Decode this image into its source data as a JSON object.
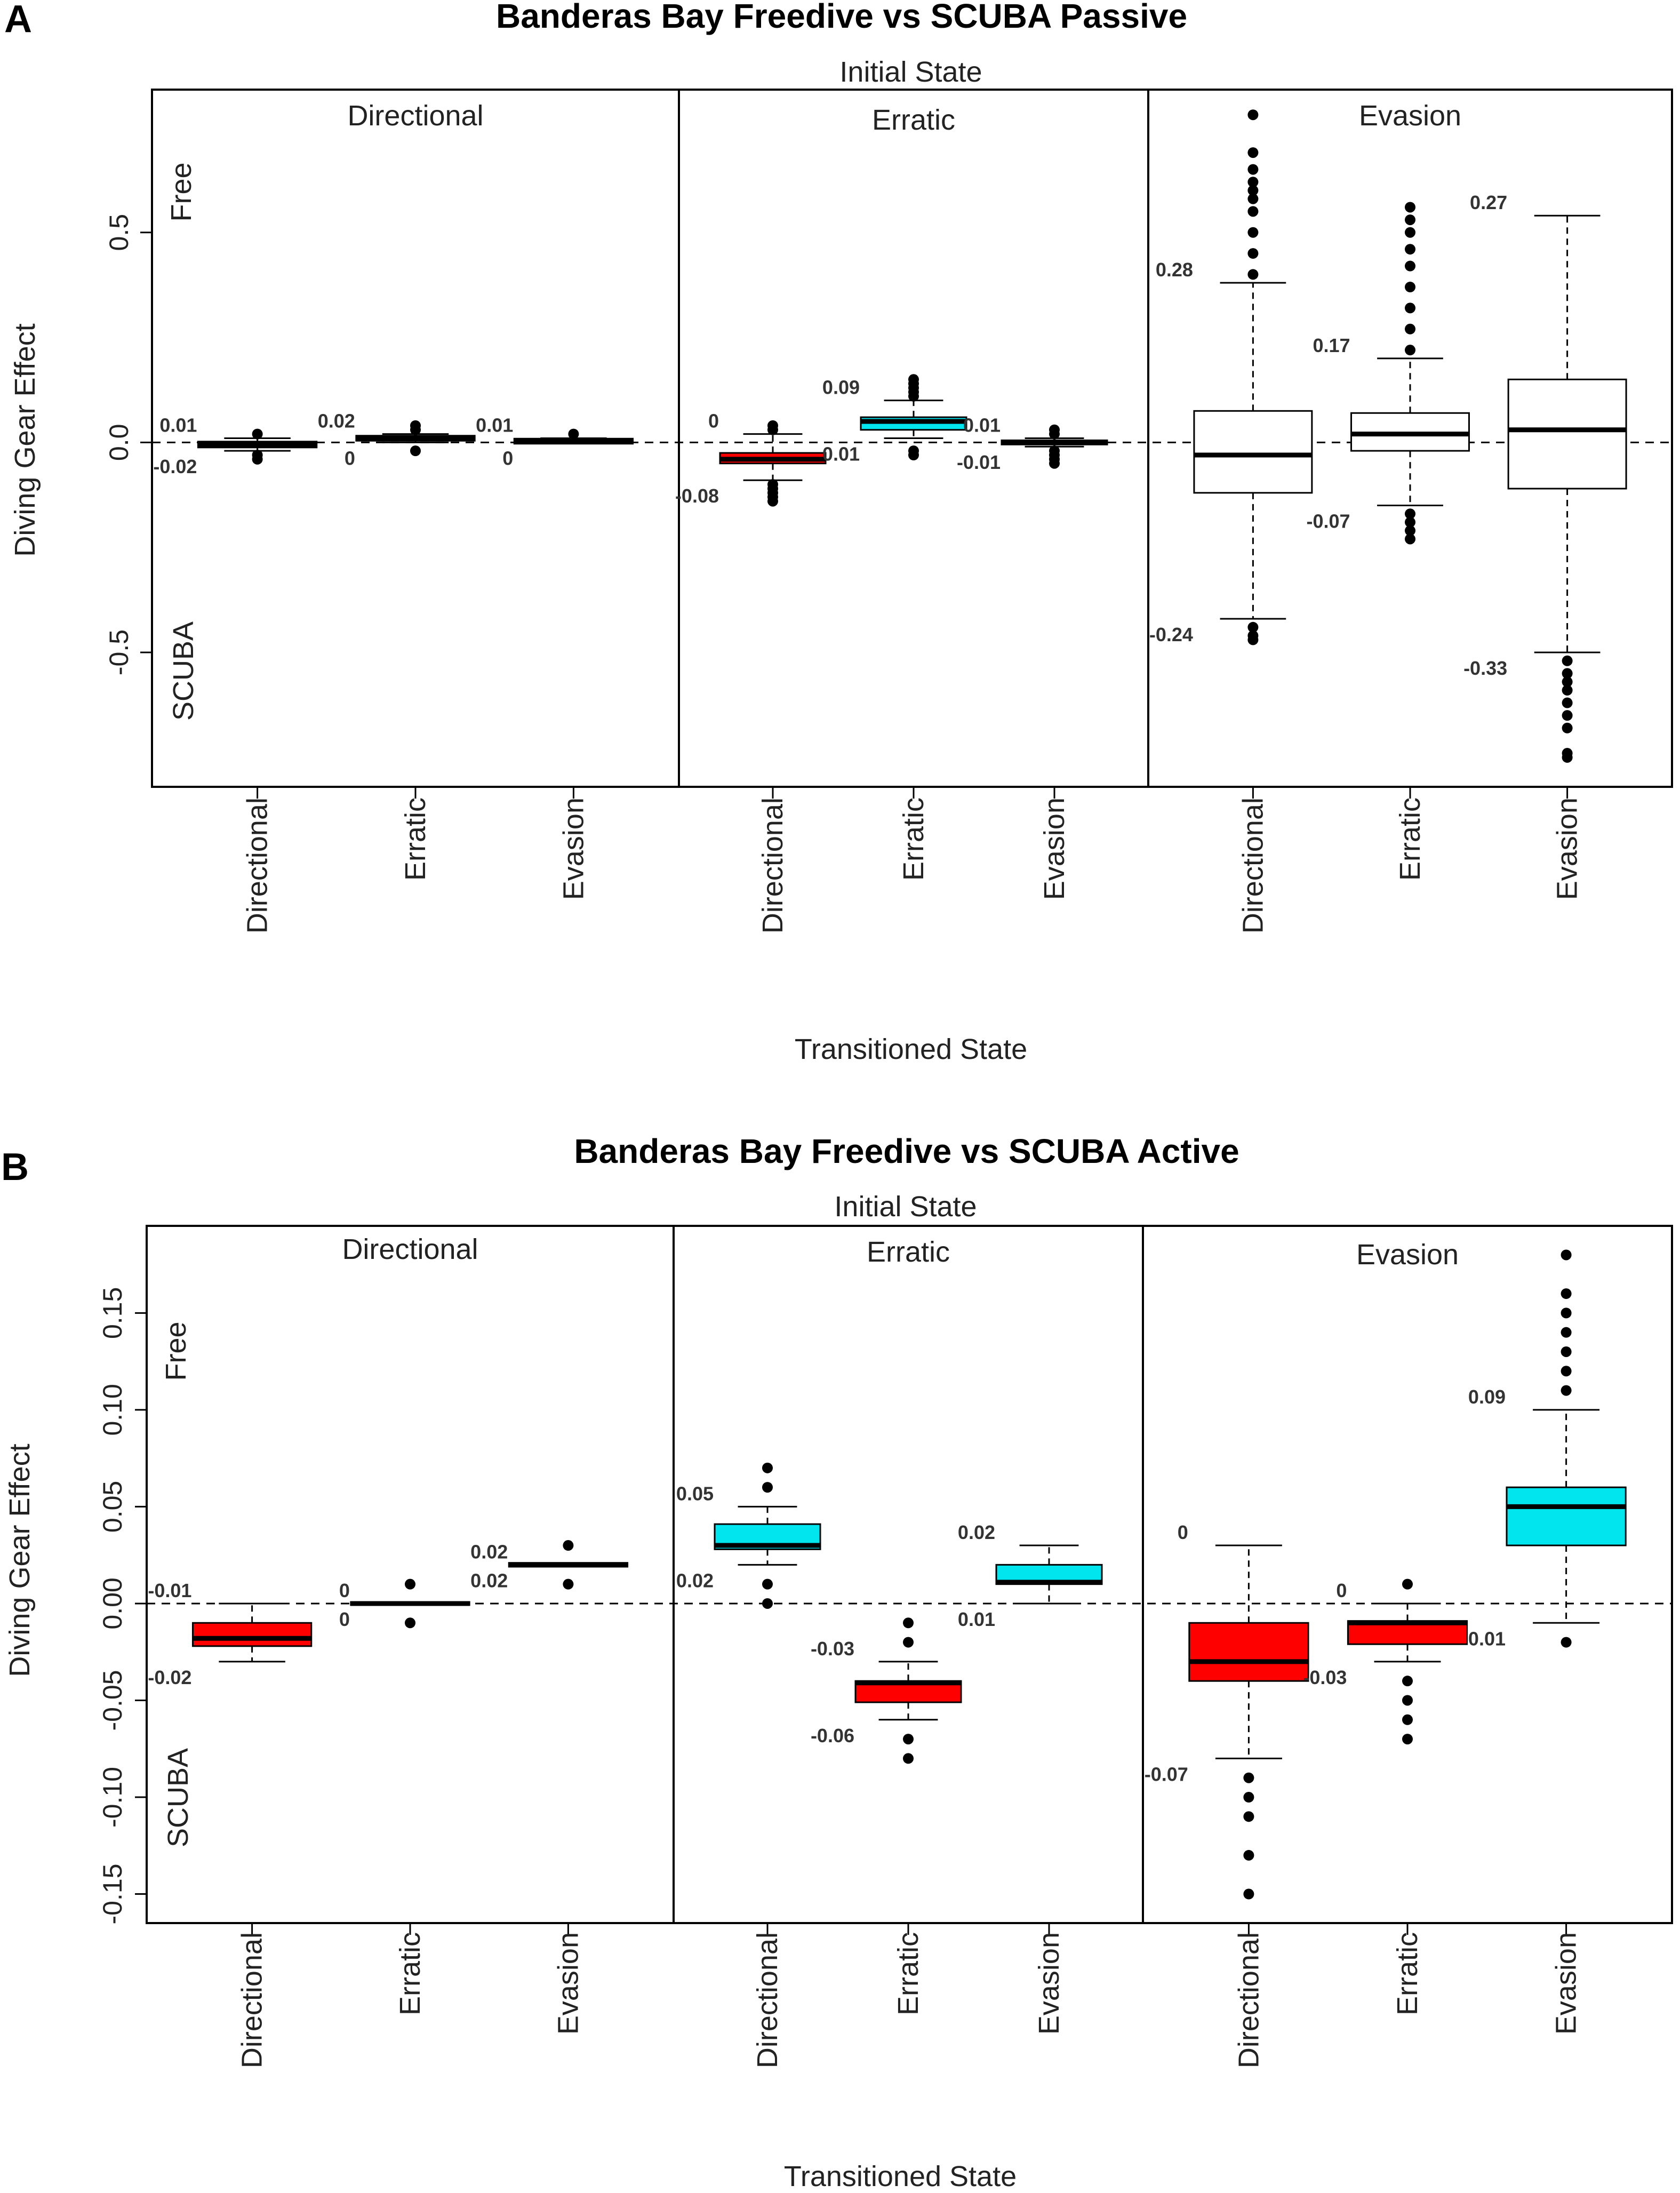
{
  "chart_data": [
    {
      "type": "box",
      "panel_letter": "A",
      "title": "Banderas Bay Freedive vs SCUBA Passive",
      "facet_header": "Initial State",
      "xlabel": "Transitioned State",
      "ylabel": "Diving Gear Effect",
      "ylim": [
        -0.82,
        0.84
      ],
      "yticks": [
        0.5,
        0.0,
        -0.5
      ],
      "ytick_labels": [
        "0.5",
        "0.0",
        "-0.5"
      ],
      "region_labels": {
        "top": "Free",
        "bottom": "SCUBA"
      },
      "x_categories": [
        "Directional",
        "Erratic",
        "Evasion"
      ],
      "facets": [
        {
          "name": "Directional",
          "boxes": [
            {
              "x": "Directional",
              "color": "#000000",
              "q1": -0.012,
              "median": -0.005,
              "q3": 0.002,
              "wlo": -0.02,
              "whi": 0.01,
              "outliers": [
                -0.04,
                -0.03,
                0.02
              ],
              "label_hi": "0.01",
              "label_lo": "-0.02"
            },
            {
              "x": "Erratic",
              "color": "#00E5EE",
              "q1": 0.004,
              "median": 0.01,
              "q3": 0.016,
              "wlo": 0.0,
              "whi": 0.02,
              "outliers": [
                -0.02,
                0.04,
                0.03
              ],
              "label_hi": "0.02",
              "label_lo": "0"
            },
            {
              "x": "Evasion",
              "color": "#00E5EE",
              "q1": -0.003,
              "median": 0.003,
              "q3": 0.009,
              "wlo": 0.0,
              "whi": 0.01,
              "outliers": [
                0.02
              ],
              "label_hi": "0.01",
              "label_lo": "0"
            }
          ]
        },
        {
          "name": "Erratic",
          "boxes": [
            {
              "x": "Directional",
              "color": "#FF0000",
              "q1": -0.05,
              "median": -0.04,
              "q3": -0.025,
              "wlo": -0.09,
              "whi": 0.02,
              "outliers": [
                -0.1,
                -0.11,
                -0.12,
                -0.13,
                -0.14,
                0.03,
                0.04
              ],
              "label_hi": "0",
              "label_lo": "-0.08"
            },
            {
              "x": "Erratic",
              "color": "#00E5EE",
              "q1": 0.03,
              "median": 0.05,
              "q3": 0.06,
              "wlo": 0.01,
              "whi": 0.1,
              "outliers": [
                0.11,
                0.12,
                0.13,
                0.14,
                0.15,
                -0.02,
                -0.03
              ],
              "label_hi": "0.09",
              "label_lo": "0.01"
            },
            {
              "x": "Evasion",
              "color": "#000000",
              "q1": -0.005,
              "median": 0.0,
              "q3": 0.005,
              "wlo": -0.01,
              "whi": 0.01,
              "outliers": [
                -0.02,
                -0.03,
                -0.04,
                -0.05,
                0.02,
                0.03
              ],
              "label_hi": "0.01",
              "label_lo": "-0.01"
            }
          ]
        },
        {
          "name": "Evasion",
          "boxes": [
            {
              "x": "Directional",
              "color": "#FFFFFF",
              "q1": -0.12,
              "median": -0.03,
              "q3": 0.075,
              "wlo": -0.42,
              "whi": 0.38,
              "outliers": [
                0.4,
                0.45,
                0.5,
                0.55,
                0.58,
                0.6,
                0.62,
                0.65,
                0.69,
                0.78,
                -0.44,
                -0.46,
                -0.47
              ],
              "label_hi": "0.28",
              "label_lo": "-0.24"
            },
            {
              "x": "Erratic",
              "color": "#FFFFFF",
              "q1": -0.02,
              "median": 0.02,
              "q3": 0.07,
              "wlo": -0.15,
              "whi": 0.2,
              "outliers": [
                0.22,
                0.27,
                0.32,
                0.37,
                0.42,
                0.46,
                0.5,
                0.53,
                0.56,
                -0.17,
                -0.19,
                -0.21,
                -0.23
              ],
              "label_hi": "0.17",
              "label_lo": "-0.07"
            },
            {
              "x": "Evasion",
              "color": "#FFFFFF",
              "q1": -0.11,
              "median": 0.03,
              "q3": 0.15,
              "wlo": -0.5,
              "whi": 0.54,
              "outliers": [
                -0.52,
                -0.55,
                -0.57,
                -0.59,
                -0.62,
                -0.65,
                -0.68,
                -0.74,
                -0.75
              ],
              "label_hi": "0.27",
              "label_lo": "-0.33"
            }
          ]
        }
      ]
    },
    {
      "type": "box",
      "panel_letter": "B",
      "title": "Banderas Bay Freedive vs SCUBA Active",
      "facet_header": "Initial State",
      "xlabel": "Transitioned State",
      "ylabel": "Diving Gear Effect",
      "ylim": [
        -0.165,
        0.195
      ],
      "yticks": [
        0.15,
        0.1,
        0.05,
        0.0,
        -0.05,
        -0.1,
        -0.15
      ],
      "ytick_labels": [
        "0.15",
        "0.10",
        "0.05",
        "0.00",
        "-0.05",
        "-0.10",
        "-0.15"
      ],
      "region_labels": {
        "top": "Free",
        "bottom": "SCUBA"
      },
      "x_categories": [
        "Directional",
        "Erratic",
        "Evasion"
      ],
      "facets": [
        {
          "name": "Directional",
          "boxes": [
            {
              "x": "Directional",
              "color": "#FF0000",
              "q1": -0.022,
              "median": -0.018,
              "q3": -0.01,
              "wlo": -0.03,
              "whi": 0.0,
              "outliers": [],
              "label_hi": "-0.01",
              "label_lo": "-0.02"
            },
            {
              "x": "Erratic",
              "color": "#000000",
              "q1": -0.0008,
              "median": 0.0,
              "q3": 0.0008,
              "wlo": 0.0,
              "whi": 0.0,
              "outliers": [
                0.01,
                -0.01
              ],
              "label_hi": "0",
              "label_lo": "0"
            },
            {
              "x": "Evasion",
              "color": "#00E5EE",
              "q1": 0.019,
              "median": 0.02,
              "q3": 0.021,
              "wlo": 0.02,
              "whi": 0.02,
              "outliers": [
                0.03,
                0.01
              ],
              "label_hi": "0.02",
              "label_lo": "0.02"
            }
          ]
        },
        {
          "name": "Erratic",
          "boxes": [
            {
              "x": "Directional",
              "color": "#00E5EE",
              "q1": 0.028,
              "median": 0.03,
              "q3": 0.041,
              "wlo": 0.02,
              "whi": 0.05,
              "outliers": [
                0.06,
                0.07,
                0.01,
                0.0
              ],
              "label_hi": "0.05",
              "label_lo": "0.02"
            },
            {
              "x": "Erratic",
              "color": "#FF0000",
              "q1": -0.051,
              "median": -0.041,
              "q3": -0.04,
              "wlo": -0.06,
              "whi": -0.03,
              "outliers": [
                -0.01,
                -0.02,
                -0.07,
                -0.08
              ],
              "label_hi": "-0.03",
              "label_lo": "-0.06"
            },
            {
              "x": "Evasion",
              "color": "#00E5EE",
              "q1": 0.01,
              "median": 0.011,
              "q3": 0.02,
              "wlo": 0.0,
              "whi": 0.03,
              "outliers": [],
              "label_hi": "0.02",
              "label_lo": "0.01"
            }
          ]
        },
        {
          "name": "Evasion",
          "boxes": [
            {
              "x": "Directional",
              "color": "#FF0000",
              "q1": -0.04,
              "median": -0.03,
              "q3": -0.01,
              "wlo": -0.08,
              "whi": 0.03,
              "outliers": [
                -0.09,
                -0.1,
                -0.11,
                -0.13,
                -0.15
              ],
              "label_hi": "0",
              "label_lo": "-0.07"
            },
            {
              "x": "Erratic",
              "color": "#FF0000",
              "q1": -0.021,
              "median": -0.01,
              "q3": -0.009,
              "wlo": -0.03,
              "whi": 0.0,
              "outliers": [
                0.01,
                -0.04,
                -0.05,
                -0.06,
                -0.07
              ],
              "label_hi": "0",
              "label_lo": "-0.03"
            },
            {
              "x": "Evasion",
              "color": "#00E5EE",
              "q1": 0.03,
              "median": 0.05,
              "q3": 0.06,
              "wlo": -0.01,
              "whi": 0.1,
              "outliers": [
                0.11,
                0.12,
                0.13,
                0.14,
                0.15,
                0.16,
                0.18,
                -0.02
              ],
              "label_hi": "0.09",
              "label_lo": "0.01"
            }
          ]
        }
      ]
    }
  ]
}
